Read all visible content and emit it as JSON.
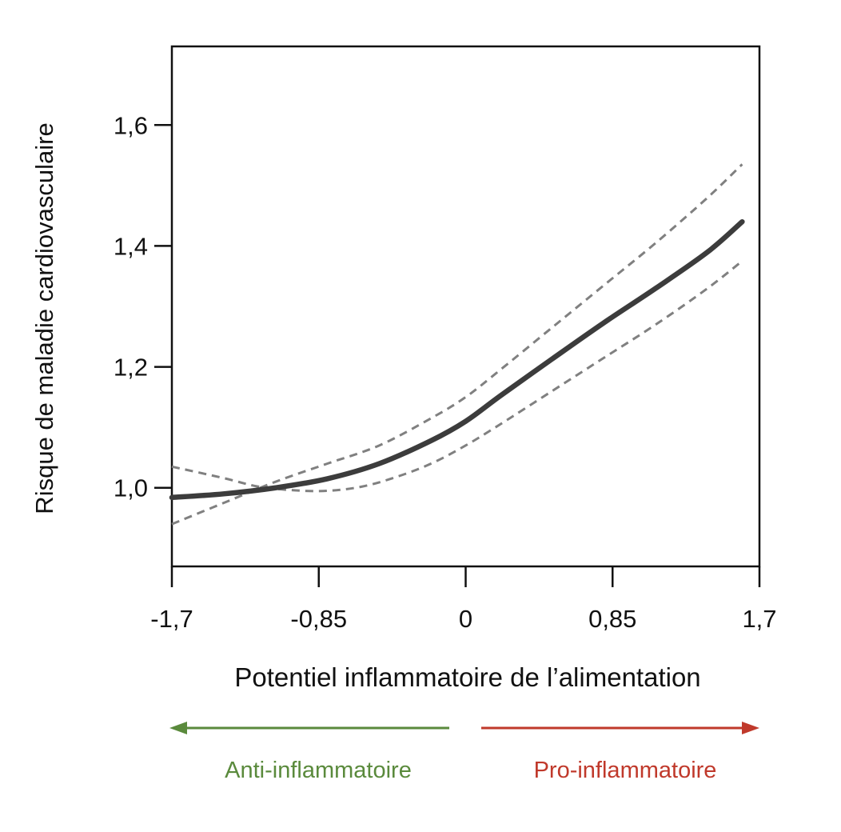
{
  "chart_data": {
    "type": "line",
    "xlabel": "Potentiel inflammatoire de l’alimentation",
    "ylabel": "Risque de maladie cardiovasculaire",
    "xlim": [
      -1.7,
      1.7
    ],
    "ylim": [
      0.87,
      1.73
    ],
    "x_ticks": [
      -1.7,
      -0.85,
      0,
      0.85,
      1.7
    ],
    "x_tick_labels": [
      "-1,7",
      "-0,85",
      "0",
      "0,85",
      "1,7"
    ],
    "y_ticks": [
      1.0,
      1.2,
      1.4,
      1.6
    ],
    "y_tick_labels": [
      "1,0",
      "1,2",
      "1,4",
      "1,6"
    ],
    "grid": false,
    "series": [
      {
        "role": "estimate",
        "style": "solid",
        "color": "#3c3c3c",
        "x": [
          -1.7,
          -1.4,
          -1.1,
          -0.8,
          -0.5,
          -0.2,
          0.0,
          0.2,
          0.5,
          0.8,
          1.1,
          1.4,
          1.6
        ],
        "y": [
          0.984,
          0.99,
          1.0,
          1.015,
          1.04,
          1.078,
          1.11,
          1.152,
          1.213,
          1.273,
          1.33,
          1.39,
          1.44
        ]
      },
      {
        "role": "upper-confidence-bound",
        "style": "dashed",
        "color": "#808080",
        "x": [
          -1.7,
          -1.4,
          -1.1,
          -0.8,
          -0.5,
          -0.2,
          0.0,
          0.2,
          0.5,
          0.8,
          1.1,
          1.4,
          1.6
        ],
        "y": [
          0.94,
          0.975,
          1.01,
          1.04,
          1.07,
          1.115,
          1.15,
          1.195,
          1.265,
          1.335,
          1.405,
          1.48,
          1.535
        ]
      },
      {
        "role": "lower-confidence-bound",
        "style": "dashed",
        "color": "#808080",
        "x": [
          -1.7,
          -1.4,
          -1.2,
          -1.0,
          -0.8,
          -0.6,
          -0.4,
          -0.2,
          0.0,
          0.2,
          0.5,
          0.8,
          1.1,
          1.4,
          1.6
        ],
        "y": [
          1.035,
          1.016,
          1.002,
          0.996,
          0.995,
          1.002,
          1.018,
          1.04,
          1.07,
          1.105,
          1.16,
          1.215,
          1.27,
          1.33,
          1.375
        ]
      }
    ],
    "arrows": [
      {
        "label": "Anti-inflammatoire",
        "direction": "left",
        "color": "#5a8a3c"
      },
      {
        "label": "Pro-inflammatoire",
        "direction": "right",
        "color": "#c0392b"
      }
    ]
  }
}
